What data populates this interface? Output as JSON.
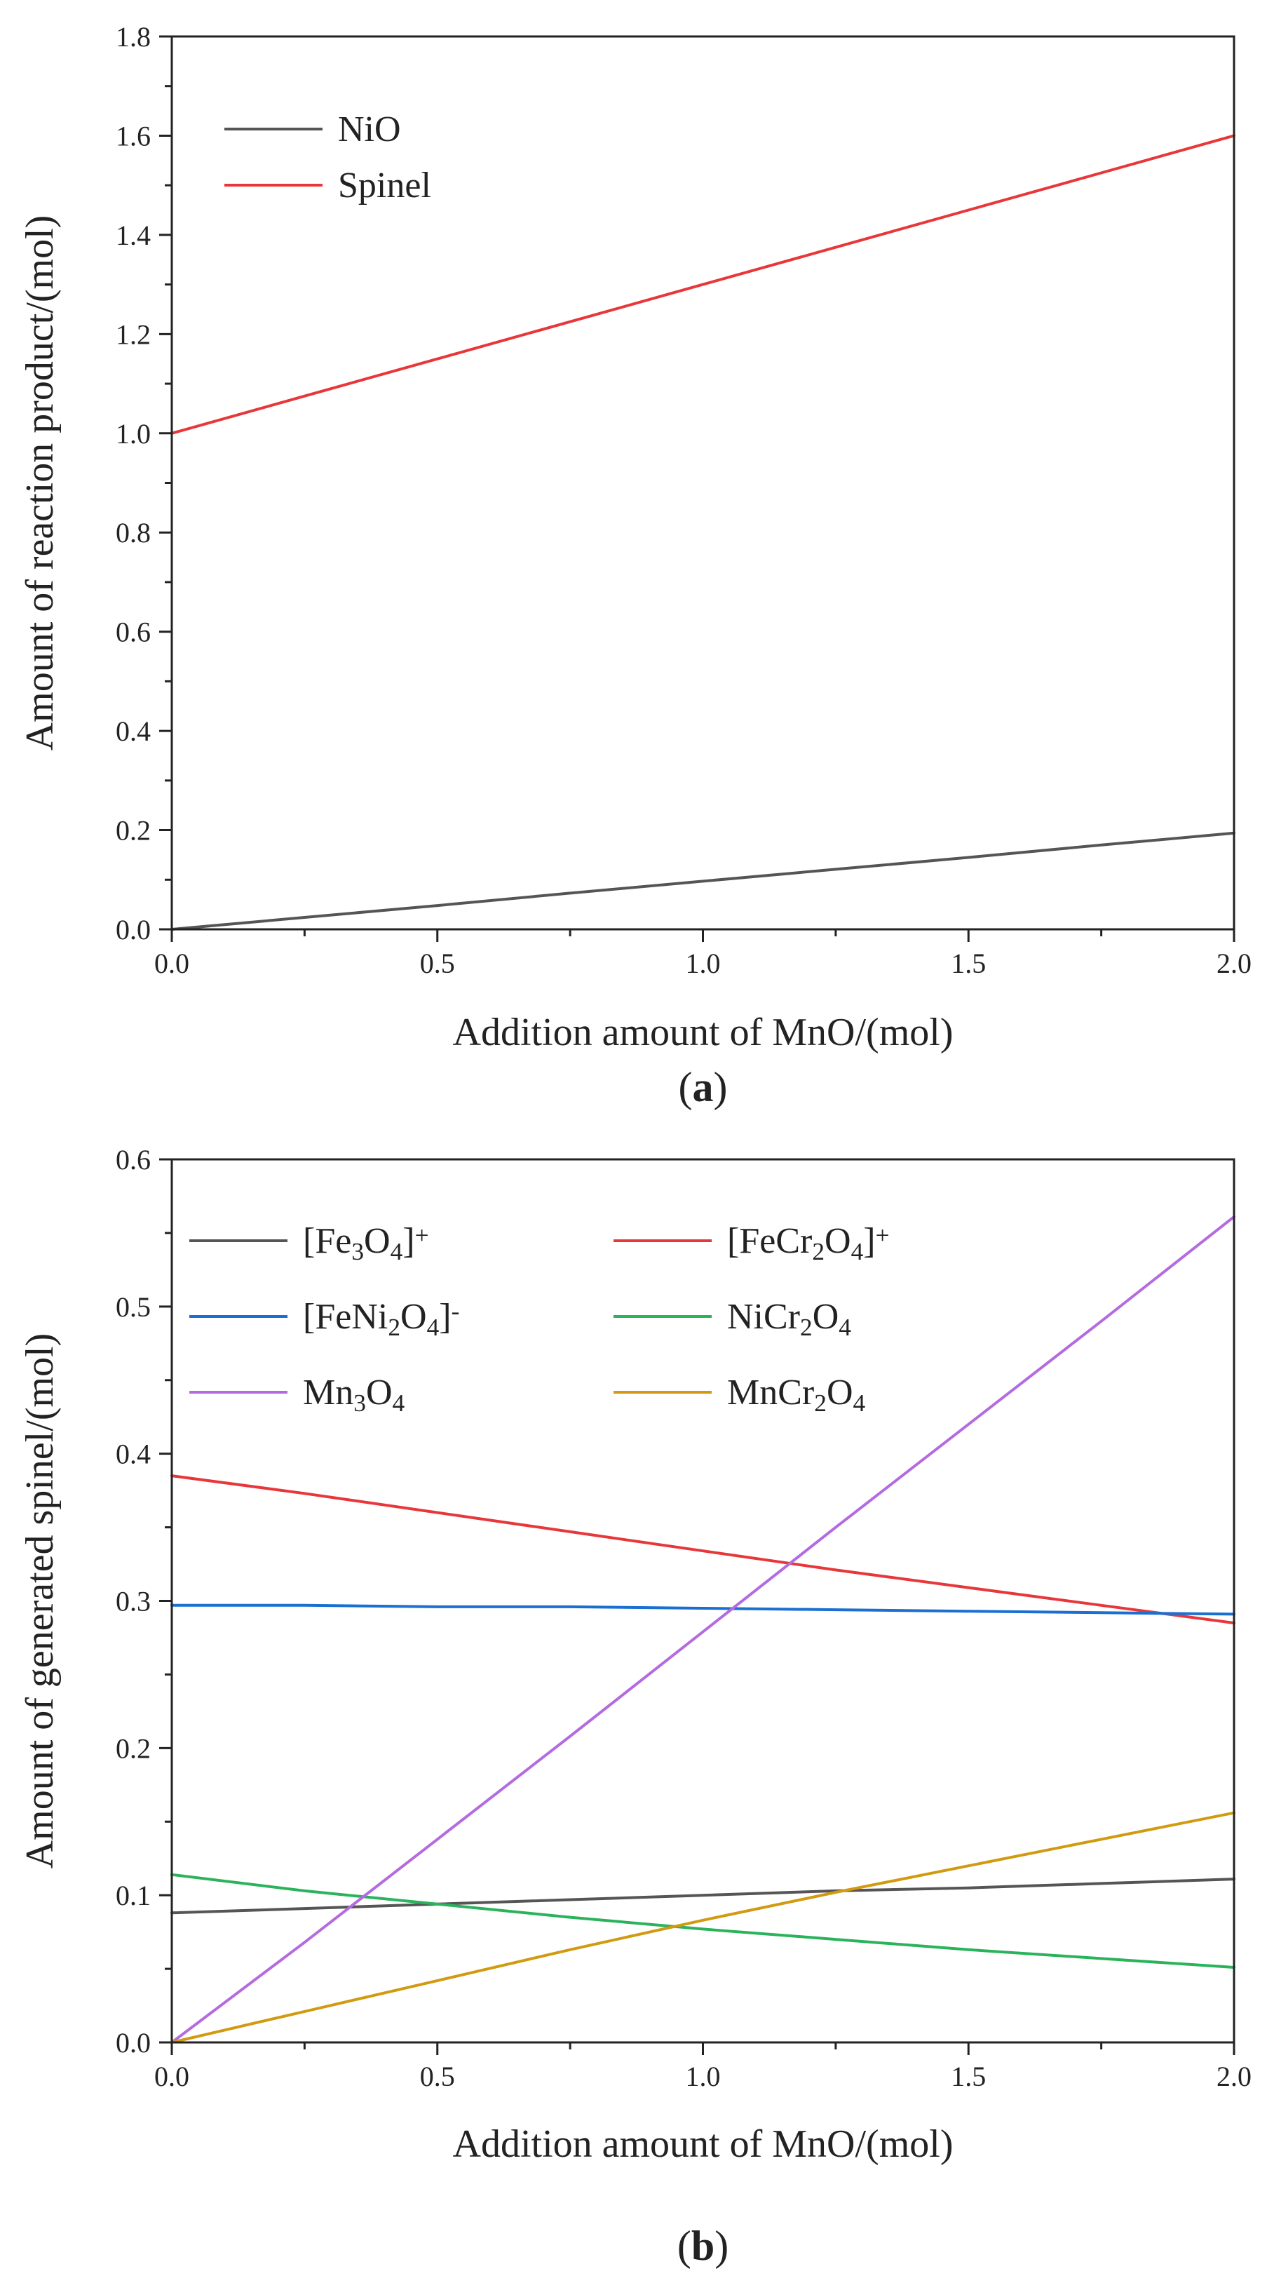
{
  "chart_data": [
    {
      "type": "line",
      "panel_label": "(a)",
      "panel_prefix": "(",
      "panel_letter": "a",
      "panel_suffix": ")",
      "xlabel": "Addition amount of  MnO/(mol)",
      "ylabel": "Amount of reaction product/(mol)",
      "xlim": [
        0,
        2.0
      ],
      "ylim": [
        0,
        1.8
      ],
      "xticks": [
        0,
        0.5,
        1.0,
        1.5,
        2.0
      ],
      "xtick_labels": [
        "0.0",
        "0.5",
        "1.0",
        "1.5",
        "2.0"
      ],
      "yticks": [
        0,
        0.2,
        0.4,
        0.6,
        0.8,
        1.0,
        1.2,
        1.4,
        1.6,
        1.8
      ],
      "ytick_labels": [
        "0.0",
        "0.2",
        "0.4",
        "0.6",
        "0.8",
        "1.0",
        "1.2",
        "1.4",
        "1.6",
        "1.8"
      ],
      "grid": false,
      "legend_position": "top-left",
      "x": [
        0,
        0.25,
        0.5,
        0.75,
        1.0,
        1.25,
        1.5,
        1.75,
        2.0
      ],
      "series": [
        {
          "name": "NiO",
          "legend_parts": [
            {
              "t": "NiO"
            }
          ],
          "color": "#555555",
          "values": [
            0.0,
            0.024,
            0.048,
            0.073,
            0.097,
            0.121,
            0.145,
            0.17,
            0.194
          ]
        },
        {
          "name": "Spinel",
          "legend_parts": [
            {
              "t": "Spinel"
            }
          ],
          "color": "#e8373a",
          "values": [
            1.0,
            1.075,
            1.15,
            1.225,
            1.3,
            1.375,
            1.45,
            1.525,
            1.6
          ]
        }
      ]
    },
    {
      "type": "line",
      "panel_label": "(b)",
      "panel_prefix": "(",
      "panel_letter": "b",
      "panel_suffix": ")",
      "xlabel": "Addition amount of  MnO/(mol)",
      "ylabel": "Amount of generated spinel/(mol)",
      "xlim": [
        0,
        2.0
      ],
      "ylim": [
        0,
        0.6
      ],
      "xticks": [
        0,
        0.5,
        1.0,
        1.5,
        2.0
      ],
      "xtick_labels": [
        "0.0",
        "0.5",
        "1.0",
        "1.5",
        "2.0"
      ],
      "yticks": [
        0,
        0.1,
        0.2,
        0.3,
        0.4,
        0.5,
        0.6
      ],
      "ytick_labels": [
        "0.0",
        "0.1",
        "0.2",
        "0.3",
        "0.4",
        "0.5",
        "0.6"
      ],
      "grid": false,
      "legend_position": "top-left",
      "x": [
        0,
        0.25,
        0.5,
        0.75,
        1.0,
        1.25,
        1.5,
        1.75,
        2.0
      ],
      "series": [
        {
          "name": "[Fe3O4]+",
          "legend_parts": [
            {
              "t": "[Fe"
            },
            {
              "t": "3",
              "s": "sub"
            },
            {
              "t": "O"
            },
            {
              "t": "4",
              "s": "sub"
            },
            {
              "t": "]"
            },
            {
              "t": "+",
              "s": "sup"
            }
          ],
          "color": "#555555",
          "values": [
            0.088,
            0.091,
            0.094,
            0.097,
            0.1,
            0.103,
            0.105,
            0.108,
            0.111
          ]
        },
        {
          "name": "[FeCr2O4]+",
          "legend_parts": [
            {
              "t": "[FeCr"
            },
            {
              "t": "2",
              "s": "sub"
            },
            {
              "t": "O"
            },
            {
              "t": "4",
              "s": "sub"
            },
            {
              "t": "]"
            },
            {
              "t": "+",
              "s": "sup"
            }
          ],
          "color": "#e8373a",
          "values": [
            0.385,
            0.373,
            0.36,
            0.347,
            0.334,
            0.321,
            0.309,
            0.297,
            0.285
          ]
        },
        {
          "name": "[FeNi2O4]-",
          "legend_parts": [
            {
              "t": "[FeNi"
            },
            {
              "t": "2",
              "s": "sub"
            },
            {
              "t": "O"
            },
            {
              "t": "4",
              "s": "sub"
            },
            {
              "t": "]"
            },
            {
              "t": "-",
              "s": "sup"
            }
          ],
          "color": "#1a6fd1",
          "values": [
            0.297,
            0.297,
            0.296,
            0.296,
            0.295,
            0.294,
            0.293,
            0.292,
            0.291
          ]
        },
        {
          "name": "NiCr2O4",
          "legend_parts": [
            {
              "t": "NiCr"
            },
            {
              "t": "2",
              "s": "sub"
            },
            {
              "t": "O"
            },
            {
              "t": "4",
              "s": "sub"
            }
          ],
          "color": "#2bb35c",
          "values": [
            0.114,
            0.103,
            0.094,
            0.085,
            0.077,
            0.07,
            0.063,
            0.057,
            0.051
          ]
        },
        {
          "name": "Mn3O4",
          "legend_parts": [
            {
              "t": "Mn"
            },
            {
              "t": "3",
              "s": "sub"
            },
            {
              "t": "O"
            },
            {
              "t": "4",
              "s": "sub"
            }
          ],
          "color": "#b46be0",
          "values": [
            0.0,
            0.068,
            0.138,
            0.208,
            0.279,
            0.35,
            0.42,
            0.49,
            0.561
          ]
        },
        {
          "name": "MnCr2O4",
          "legend_parts": [
            {
              "t": "MnCr"
            },
            {
              "t": "2",
              "s": "sub"
            },
            {
              "t": "O"
            },
            {
              "t": "4",
              "s": "sub"
            }
          ],
          "color": "#d19a10",
          "values": [
            0.0,
            0.021,
            0.042,
            0.063,
            0.083,
            0.102,
            0.12,
            0.138,
            0.156
          ]
        }
      ]
    }
  ]
}
